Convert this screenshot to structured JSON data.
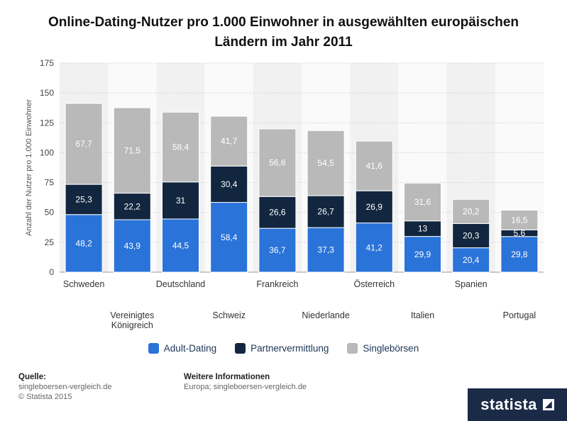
{
  "title": "Online-Dating-Nutzer pro 1.000 Einwohner in ausgewählten europäischen\nLändern im Jahr 2011",
  "colors": {
    "adult": "#2a73d9",
    "partner": "#12263f",
    "single": "#b9b9b9"
  },
  "chart_data": {
    "type": "bar",
    "stacked": true,
    "title": "Online-Dating-Nutzer pro 1.000 Einwohner in ausgewählten europäischen Ländern im Jahr 2011",
    "xlabel": "",
    "ylabel": "Anzahl der Nutzer pro 1.000 Einwohner",
    "ylim": [
      0,
      175
    ],
    "yticks": [
      0,
      25,
      50,
      75,
      100,
      125,
      150,
      175
    ],
    "grid": true,
    "legend_position": "bottom",
    "categories": [
      "Schweden",
      "Vereinigtes Königreich",
      "Deutschland",
      "Schweiz",
      "Frankreich",
      "Niederlande",
      "Österreich",
      "Italien",
      "Spanien",
      "Portugal"
    ],
    "category_labels": [
      "Schweden",
      "Vereinigtes\nKönigreich",
      "Deutschland",
      "Schweiz",
      "Frankreich",
      "Niederlande",
      "Österreich",
      "Italien",
      "Spanien",
      "Portugal"
    ],
    "series": [
      {
        "name": "Adult-Dating",
        "values": [
          48.2,
          43.9,
          44.5,
          58.4,
          36.7,
          37.3,
          41.2,
          29.9,
          20.4,
          29.8
        ],
        "labels": [
          "48,2",
          "43,9",
          "44,5",
          "58,4",
          "36,7",
          "37,3",
          "41,2",
          "29,9",
          "20,4",
          "29,8"
        ]
      },
      {
        "name": "Partnervermittlung",
        "values": [
          25.3,
          22.2,
          31,
          30.4,
          26.6,
          26.7,
          26.9,
          13,
          20.3,
          5.6
        ],
        "labels": [
          "25,3",
          "22,2",
          "31",
          "30,4",
          "26,6",
          "26,7",
          "26,9",
          "13",
          "20,3",
          "5,6"
        ]
      },
      {
        "name": "Singlebörsen",
        "values": [
          67.7,
          71.5,
          58.4,
          41.7,
          56.6,
          54.5,
          41.6,
          31.6,
          20.2,
          16.5
        ],
        "labels": [
          "67,7",
          "71,5",
          "58,4",
          "41,7",
          "56,6",
          "54,5",
          "41,6",
          "31,6",
          "20,2",
          "16,5"
        ]
      }
    ]
  },
  "source": {
    "label": "Quelle:",
    "line1": "singleboersen-vergleich.de",
    "line2": "© Statista 2015"
  },
  "info": {
    "label": "Weitere Informationen",
    "line1": "Europa; singleboersen-vergleich.de"
  },
  "brand": {
    "name": "statista"
  }
}
